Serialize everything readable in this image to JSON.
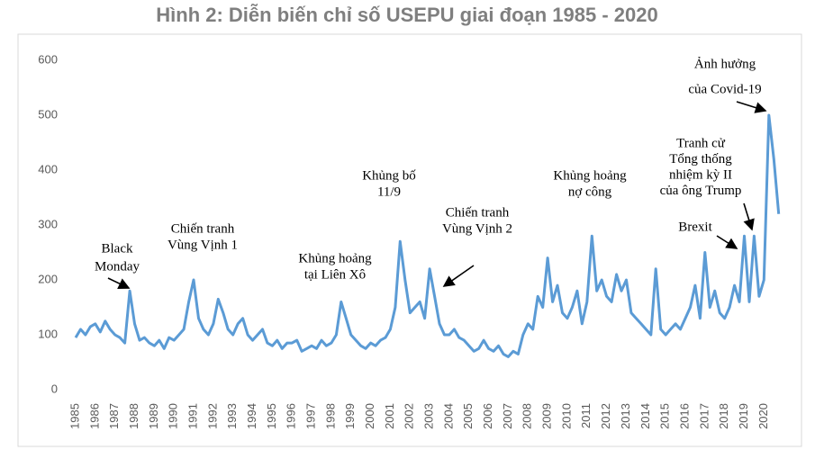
{
  "chart_data": {
    "type": "line",
    "title": "Hình 2: Diễn biến chỉ số USEPU giai đoạn 1985 - 2020",
    "x": [
      1985,
      1985.25,
      1985.5,
      1985.75,
      1986,
      1986.25,
      1986.5,
      1986.75,
      1987,
      1987.25,
      1987.5,
      1987.75,
      1988,
      1988.25,
      1988.5,
      1988.75,
      1989,
      1989.25,
      1989.5,
      1989.75,
      1990,
      1990.25,
      1990.5,
      1990.75,
      1991,
      1991.25,
      1991.5,
      1991.75,
      1992,
      1992.25,
      1992.5,
      1992.75,
      1993,
      1993.25,
      1993.5,
      1993.75,
      1994,
      1994.25,
      1994.5,
      1994.75,
      1995,
      1995.25,
      1995.5,
      1995.75,
      1996,
      1996.25,
      1996.5,
      1996.75,
      1997,
      1997.25,
      1997.5,
      1997.75,
      1998,
      1998.25,
      1998.5,
      1998.75,
      1999,
      1999.25,
      1999.5,
      1999.75,
      2000,
      2000.25,
      2000.5,
      2000.75,
      2001,
      2001.25,
      2001.5,
      2001.75,
      2002,
      2002.25,
      2002.5,
      2002.75,
      2003,
      2003.25,
      2003.5,
      2003.75,
      2004,
      2004.25,
      2004.5,
      2004.75,
      2005,
      2005.25,
      2005.5,
      2005.75,
      2006,
      2006.25,
      2006.5,
      2006.75,
      2007,
      2007.25,
      2007.5,
      2007.75,
      2008,
      2008.25,
      2008.5,
      2008.75,
      2009,
      2009.25,
      2009.5,
      2009.75,
      2010,
      2010.25,
      2010.5,
      2010.75,
      2011,
      2011.25,
      2011.5,
      2011.75,
      2012,
      2012.25,
      2012.5,
      2012.75,
      2013,
      2013.25,
      2013.5,
      2013.75,
      2014,
      2014.25,
      2014.5,
      2014.75,
      2015,
      2015.25,
      2015.5,
      2015.75,
      2016,
      2016.25,
      2016.5,
      2016.75,
      2017,
      2017.25,
      2017.5,
      2017.75,
      2018,
      2018.25,
      2018.5,
      2018.75,
      2019,
      2019.25,
      2019.5,
      2019.75,
      2020,
      2020.25,
      2020.5,
      2020.75
    ],
    "series": [
      {
        "name": "USEPU",
        "color": "#5b9bd5",
        "values": [
          95,
          110,
          100,
          115,
          120,
          105,
          125,
          110,
          100,
          95,
          85,
          180,
          120,
          90,
          95,
          85,
          80,
          90,
          75,
          95,
          90,
          100,
          110,
          160,
          200,
          130,
          110,
          100,
          120,
          165,
          140,
          110,
          100,
          120,
          130,
          100,
          90,
          100,
          110,
          85,
          80,
          90,
          75,
          85,
          85,
          90,
          70,
          75,
          80,
          75,
          90,
          80,
          85,
          100,
          160,
          130,
          100,
          90,
          80,
          75,
          85,
          80,
          90,
          95,
          110,
          150,
          270,
          200,
          140,
          150,
          160,
          130,
          220,
          170,
          120,
          100,
          100,
          110,
          95,
          90,
          80,
          70,
          75,
          90,
          75,
          70,
          80,
          65,
          60,
          70,
          65,
          100,
          120,
          110,
          170,
          150,
          240,
          160,
          190,
          140,
          130,
          150,
          180,
          120,
          160,
          280,
          180,
          200,
          170,
          160,
          210,
          180,
          200,
          140,
          130,
          120,
          110,
          100,
          220,
          110,
          100,
          110,
          120,
          110,
          130,
          150,
          190,
          130,
          250,
          150,
          180,
          140,
          130,
          150,
          190,
          160,
          280,
          160,
          280,
          170,
          200,
          500,
          420,
          320
        ]
      }
    ],
    "xlim": [
      1985,
      2020.9
    ],
    "xticks": [
      1985,
      1986,
      1987,
      1988,
      1989,
      1990,
      1991,
      1992,
      1993,
      1994,
      1995,
      1996,
      1997,
      1998,
      1999,
      2000,
      2001,
      2002,
      2003,
      2004,
      2005,
      2006,
      2007,
      2008,
      2009,
      2010,
      2011,
      2012,
      2013,
      2014,
      2015,
      2016,
      2017,
      2018,
      2019,
      2020
    ],
    "ylim": [
      0,
      600
    ],
    "yticks": [
      0,
      100,
      200,
      300,
      400,
      500,
      600
    ],
    "grid": false,
    "annotations": [
      {
        "lines": [
          "Black",
          "Monday"
        ]
      },
      {
        "lines": [
          "Chiến tranh",
          "Vùng Vịnh 1"
        ]
      },
      {
        "lines": [
          "Khủng hoảng",
          "tại Liên Xô"
        ]
      },
      {
        "lines": [
          "Khủng bố",
          "11/9"
        ]
      },
      {
        "lines": [
          "Chiến tranh",
          "Vùng Vịnh 2"
        ]
      },
      {
        "lines": [
          "Khủng hoảng",
          "nợ công"
        ]
      },
      {
        "lines": [
          "Tranh cử",
          "Tổng thống",
          "nhiệm kỳ II",
          "của ông Trump"
        ]
      },
      {
        "lines": [
          "Brexit"
        ]
      },
      {
        "lines": [
          "Ảnh hưởng",
          "của Covid-19"
        ]
      }
    ]
  }
}
